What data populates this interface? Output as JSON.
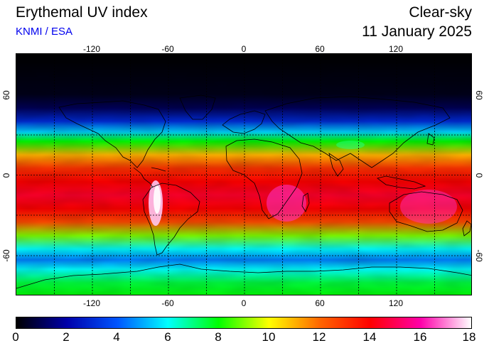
{
  "header": {
    "title": "Erythemal UV index",
    "source": "KNMI / ESA",
    "mode": "Clear-sky",
    "date": "11 January 2025"
  },
  "map": {
    "lon_ticks": [
      "-120",
      "-60",
      "0",
      "60",
      "120"
    ],
    "lat_ticks_left": [
      "60",
      "0",
      "-60"
    ],
    "lat_ticks_right": [
      "60",
      "0",
      "-60"
    ],
    "lon_range": [
      -180,
      180
    ],
    "lat_range": [
      -90,
      90
    ],
    "grid_spacing_deg": 30,
    "gridlines": "dashed black",
    "uv_profile_by_latitude": [
      {
        "lat": 90,
        "uv": 0
      },
      {
        "lat": 60,
        "uv": 0.3
      },
      {
        "lat": 50,
        "uv": 1
      },
      {
        "lat": 40,
        "uv": 3
      },
      {
        "lat": 32,
        "uv": 5.5
      },
      {
        "lat": 25,
        "uv": 8
      },
      {
        "lat": 15,
        "uv": 11
      },
      {
        "lat": 5,
        "uv": 13
      },
      {
        "lat": -5,
        "uv": 14
      },
      {
        "lat": -15,
        "uv": 14.5
      },
      {
        "lat": -25,
        "uv": 14
      },
      {
        "lat": -35,
        "uv": 12.5
      },
      {
        "lat": -45,
        "uv": 9
      },
      {
        "lat": -55,
        "uv": 6
      },
      {
        "lat": -63,
        "uv": 4.5
      },
      {
        "lat": -70,
        "uv": 6
      },
      {
        "lat": -80,
        "uv": 7.5
      },
      {
        "lat": -90,
        "uv": 8
      }
    ]
  },
  "colorbar": {
    "labels": [
      "0",
      "2",
      "4",
      "6",
      "8",
      "10",
      "12",
      "14",
      "16",
      "18"
    ],
    "range": [
      0,
      18
    ],
    "color_stops": [
      {
        "v": 0,
        "c": "#000000"
      },
      {
        "v": 2,
        "c": "#0000aa"
      },
      {
        "v": 4,
        "c": "#0055ff"
      },
      {
        "v": 6,
        "c": "#00ffff"
      },
      {
        "v": 8,
        "c": "#00ff00"
      },
      {
        "v": 10,
        "c": "#ffff00"
      },
      {
        "v": 12,
        "c": "#ff6600"
      },
      {
        "v": 14,
        "c": "#ff0000"
      },
      {
        "v": 16,
        "c": "#ff00aa"
      },
      {
        "v": 18,
        "c": "#ffffff"
      }
    ]
  }
}
